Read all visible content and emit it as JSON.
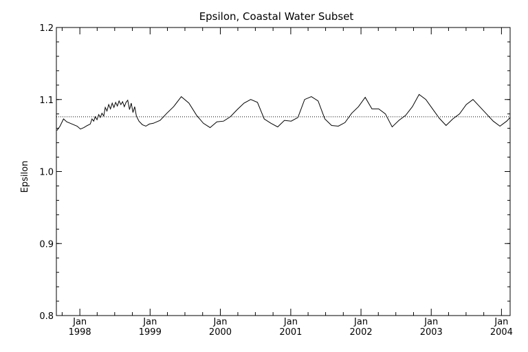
{
  "chart_data": {
    "type": "line",
    "title": "Epsilon, Coastal Water Subset",
    "xlabel": "",
    "ylabel": "Epsilon",
    "ylim": [
      0.8,
      1.2
    ],
    "xlim": [
      "1997-09-01",
      "2004-02-15"
    ],
    "y_ticks": [
      0.8,
      0.9,
      1.0,
      1.1,
      1.2
    ],
    "y_tick_labels": [
      "0.8",
      "0.9",
      "1.0",
      "1.1",
      "1.2"
    ],
    "x_ticks": [
      {
        "date": "1998-01-01",
        "month": "Jan",
        "year": "1998"
      },
      {
        "date": "1999-01-01",
        "month": "Jan",
        "year": "1999"
      },
      {
        "date": "2000-01-01",
        "month": "Jan",
        "year": "2000"
      },
      {
        "date": "2001-01-01",
        "month": "Jan",
        "year": "2001"
      },
      {
        "date": "2002-01-01",
        "month": "Jan",
        "year": "2002"
      },
      {
        "date": "2003-01-01",
        "month": "Jan",
        "year": "2003"
      },
      {
        "date": "2004-01-01",
        "month": "Jan",
        "year": "2004"
      }
    ],
    "reference_line": {
      "y": 1.076,
      "style": "dotted"
    },
    "grid": false,
    "series": [
      {
        "x": [
          "1997-09-04",
          "1997-09-20",
          "1997-10-08",
          "1997-10-25",
          "1997-11-12",
          "1997-11-30",
          "1997-12-18",
          "1998-01-04",
          "1998-01-22",
          "1998-02-09",
          "1998-02-24",
          "1998-03-05",
          "1998-03-14",
          "1998-03-22",
          "1998-03-31",
          "1998-04-09",
          "1998-04-17",
          "1998-04-26",
          "1998-05-05",
          "1998-05-13",
          "1998-05-22",
          "1998-05-31",
          "1998-06-09",
          "1998-06-18",
          "1998-06-27",
          "1998-07-06",
          "1998-07-15",
          "1998-07-24",
          "1998-08-02",
          "1998-08-11",
          "1998-08-20",
          "1998-08-29",
          "1998-09-07",
          "1998-09-16",
          "1998-09-25",
          "1998-10-04",
          "1998-10-13",
          "1998-10-22",
          "1998-11-04",
          "1998-11-22",
          "1998-12-10",
          "1998-12-28",
          "1999-01-18",
          "1999-02-22",
          "1999-03-29",
          "1999-05-03",
          "1999-06-12",
          "1999-07-22",
          "1999-08-31",
          "1999-10-05",
          "1999-11-09",
          "1999-12-14",
          "2000-01-18",
          "2000-02-22",
          "2000-03-29",
          "2000-05-03",
          "2000-06-07",
          "2000-07-12",
          "2000-08-16",
          "2000-09-20",
          "2000-10-25",
          "2000-11-29",
          "2001-01-03",
          "2001-02-07",
          "2001-03-14",
          "2001-04-18",
          "2001-05-23",
          "2001-06-27",
          "2001-08-01",
          "2001-09-05",
          "2001-10-10",
          "2001-11-14",
          "2001-12-19",
          "2002-01-23",
          "2002-02-27",
          "2002-04-03",
          "2002-05-08",
          "2002-06-12",
          "2002-07-17",
          "2002-08-21",
          "2002-09-25",
          "2002-10-30",
          "2002-12-04",
          "2003-01-08",
          "2003-02-12",
          "2003-03-19",
          "2003-04-23",
          "2003-05-28",
          "2003-07-02",
          "2003-08-06",
          "2003-09-10",
          "2003-10-15",
          "2003-11-19",
          "2003-12-24",
          "2004-01-28",
          "2004-02-15"
        ],
        "values": [
          1.057,
          1.063,
          1.073,
          1.069,
          1.067,
          1.065,
          1.063,
          1.059,
          1.061,
          1.064,
          1.066,
          1.073,
          1.07,
          1.076,
          1.072,
          1.079,
          1.075,
          1.081,
          1.077,
          1.089,
          1.084,
          1.093,
          1.087,
          1.095,
          1.089,
          1.096,
          1.091,
          1.098,
          1.093,
          1.097,
          1.09,
          1.096,
          1.099,
          1.086,
          1.095,
          1.082,
          1.09,
          1.077,
          1.07,
          1.065,
          1.063,
          1.066,
          1.067,
          1.071,
          1.081,
          1.09,
          1.104,
          1.095,
          1.078,
          1.067,
          1.061,
          1.069,
          1.07,
          1.076,
          1.086,
          1.095,
          1.1,
          1.096,
          1.073,
          1.067,
          1.062,
          1.071,
          1.07,
          1.075,
          1.1,
          1.104,
          1.098,
          1.073,
          1.064,
          1.063,
          1.068,
          1.081,
          1.09,
          1.103,
          1.087,
          1.087,
          1.08,
          1.062,
          1.071,
          1.078,
          1.09,
          1.107,
          1.1,
          1.087,
          1.074,
          1.064,
          1.073,
          1.08,
          1.093,
          1.1,
          1.09,
          1.08,
          1.07,
          1.063,
          1.07,
          1.075
        ]
      }
    ]
  }
}
